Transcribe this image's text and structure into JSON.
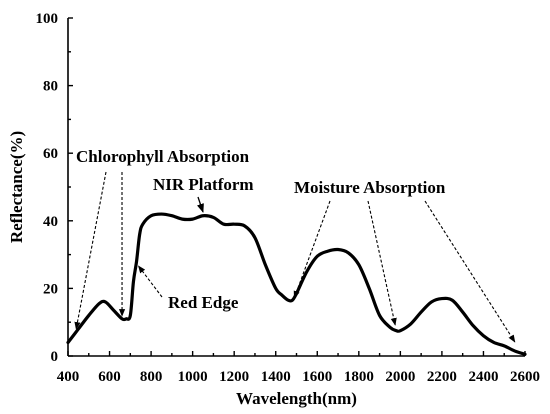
{
  "chart_data": {
    "type": "line",
    "title": "",
    "xlabel": "Wavelength(nm)",
    "ylabel": "Reflectance(%)",
    "xlim": [
      400,
      2600
    ],
    "ylim": [
      0,
      100
    ],
    "xticks": [
      400,
      600,
      800,
      1000,
      1200,
      1400,
      1600,
      1800,
      2000,
      2200,
      2400,
      2600
    ],
    "yticks": [
      0,
      20,
      40,
      60,
      80,
      100
    ],
    "grid": false,
    "legend": "none",
    "series": [
      {
        "x": [
          400,
          450,
          500,
          550,
          580,
          620,
          660,
          680,
          700,
          715,
          730,
          745,
          760,
          800,
          850,
          900,
          950,
          1000,
          1050,
          1100,
          1150,
          1200,
          1250,
          1300,
          1350,
          1400,
          1430,
          1460,
          1480,
          1500,
          1550,
          1600,
          1650,
          1700,
          1750,
          1800,
          1850,
          1900,
          1950,
          1980,
          2000,
          2050,
          2100,
          2150,
          2200,
          2250,
          2300,
          2350,
          2400,
          2450,
          2500,
          2550,
          2600
        ],
        "y": [
          4,
          8,
          12,
          15.5,
          16,
          13.5,
          11,
          11,
          12,
          22,
          28,
          36,
          39,
          41.5,
          42,
          41.5,
          40.5,
          40.5,
          41.5,
          41,
          39,
          39,
          38.5,
          35,
          27,
          20,
          18,
          16.5,
          16.5,
          18.5,
          25,
          29.5,
          31,
          31.5,
          30.5,
          27,
          20,
          12,
          8.5,
          7.5,
          7.5,
          9.5,
          13,
          16,
          17,
          16.5,
          13,
          9,
          6,
          4,
          3,
          1.5,
          0.5
        ]
      }
    ],
    "annotations": [
      {
        "text": "Chlorophyll Absorption",
        "targets_x": [
          420,
          665
        ]
      },
      {
        "text": "NIR Platform",
        "targets_x": [
          1050
        ]
      },
      {
        "text": "Red Edge",
        "targets_x": [
          720
        ]
      },
      {
        "text": "Moisture Absorption",
        "targets_x": [
          1470,
          1980,
          2580
        ]
      }
    ]
  }
}
